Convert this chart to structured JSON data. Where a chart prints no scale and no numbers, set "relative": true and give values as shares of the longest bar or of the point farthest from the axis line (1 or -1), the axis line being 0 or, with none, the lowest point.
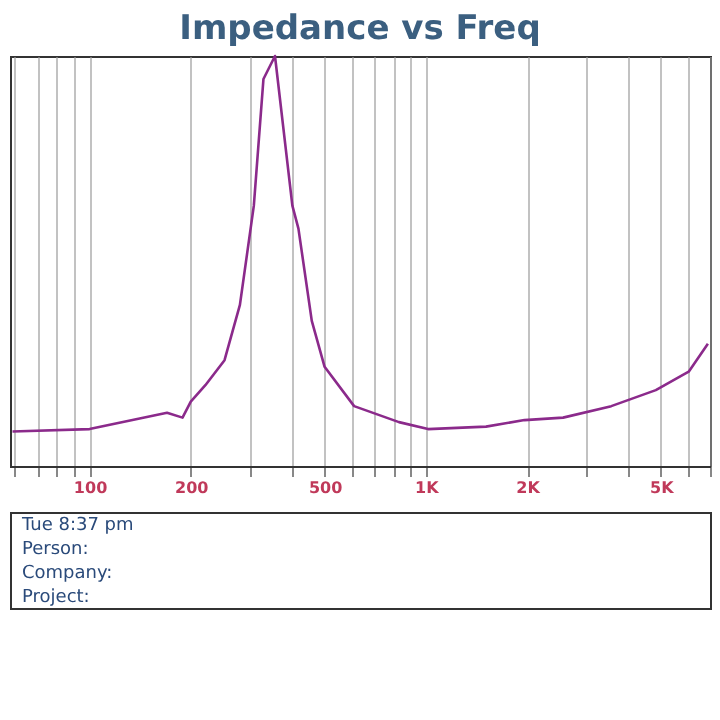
{
  "chart_data": {
    "type": "line",
    "title": "Impedance vs Freq",
    "relative": true,
    "log": "x",
    "grid": "x",
    "marker": "none",
    "line_style": "solid",
    "legend": false,
    "x": [
      59,
      100,
      170,
      189,
      200,
      221,
      252,
      280,
      308,
      329,
      356,
      401,
      418,
      458,
      500,
      612,
      832,
      1015,
      1510,
      1965,
      2560,
      3560,
      4830,
      6050,
      6900
    ],
    "series": [
      {
        "color": "#8b2a8b",
        "values": [
          0.084,
          0.09,
          0.13,
          0.118,
          0.157,
          0.197,
          0.258,
          0.393,
          0.635,
          0.944,
          1,
          0.635,
          0.579,
          0.354,
          0.242,
          0.146,
          0.107,
          0.09,
          0.096,
          0.112,
          0.118,
          0.146,
          0.185,
          0.23,
          0.298
        ]
      }
    ],
    "xlim": [
      58,
      7000
    ],
    "xticks": [
      {
        "value": 60,
        "label": null
      },
      {
        "value": 70,
        "label": null
      },
      {
        "value": 80,
        "label": null
      },
      {
        "value": 90,
        "label": null
      },
      100,
      200,
      {
        "value": 300,
        "label": null
      },
      {
        "value": 400,
        "label": null
      },
      500,
      {
        "value": 600,
        "label": null
      },
      {
        "value": 700,
        "label": null
      },
      {
        "value": 800,
        "label": null
      },
      {
        "value": 900,
        "label": null
      },
      {
        "value": 1000,
        "label": "1K"
      },
      {
        "value": 2000,
        "label": "2K"
      },
      {
        "value": 3000,
        "label": null
      },
      {
        "value": 4000,
        "label": null
      },
      {
        "value": 5000,
        "label": "5K"
      },
      {
        "value": 6000,
        "label": null
      },
      {
        "value": 7000,
        "label": null
      }
    ],
    "annotations": [
      "Tue 8:37 pm",
      "Person:",
      "Company:",
      "Project:"
    ]
  }
}
